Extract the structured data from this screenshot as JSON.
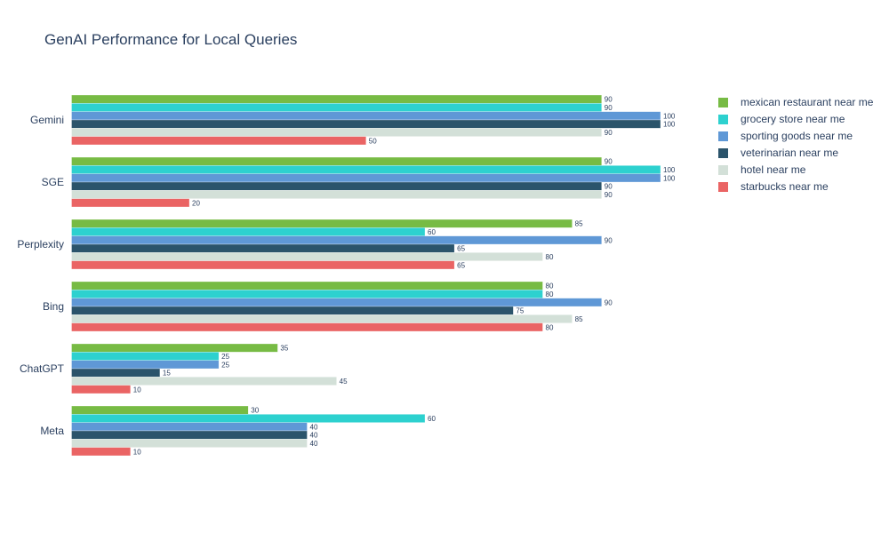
{
  "chart_data": {
    "type": "bar",
    "orientation": "horizontal",
    "title": "GenAI Performance for Local Queries",
    "xlabel": "",
    "ylabel": "",
    "xlim": [
      0,
      105
    ],
    "grid": false,
    "legend_position": "right",
    "categories": [
      "Gemini",
      "SGE",
      "Perplexity",
      "Bing",
      "ChatGPT",
      "Meta"
    ],
    "series": [
      {
        "name": "mexican restaurant near me",
        "color": "#77bb44",
        "values": [
          90,
          90,
          85,
          80,
          35,
          30
        ]
      },
      {
        "name": "grocery store near me",
        "color": "#2dd1cf",
        "values": [
          90,
          100,
          60,
          80,
          25,
          60
        ]
      },
      {
        "name": "sporting goods near me",
        "color": "#5f98d6",
        "values": [
          100,
          100,
          90,
          90,
          25,
          40
        ]
      },
      {
        "name": "veterinarian near me",
        "color": "#2b546b",
        "values": [
          100,
          90,
          65,
          75,
          15,
          40
        ]
      },
      {
        "name": "hotel near me",
        "color": "#d3e0d8",
        "values": [
          90,
          90,
          80,
          85,
          45,
          40
        ]
      },
      {
        "name": "starbucks near me",
        "color": "#ea6464",
        "values": [
          50,
          20,
          65,
          80,
          10,
          10
        ]
      }
    ]
  }
}
